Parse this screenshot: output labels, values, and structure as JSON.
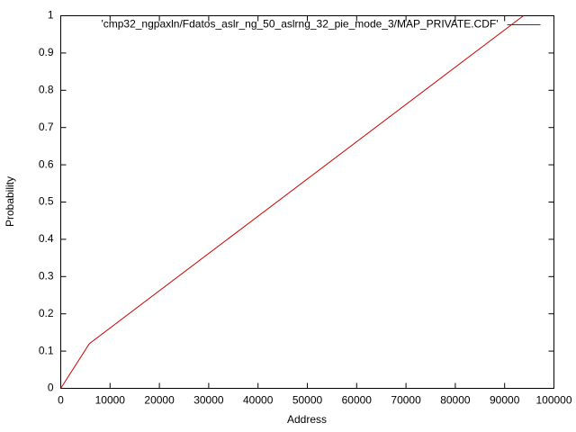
{
  "chart_data": {
    "type": "line",
    "x_label": "Address",
    "y_label": "Probability",
    "x": [
      0,
      5800,
      93800
    ],
    "series": [
      {
        "name": "'cmp32_ngpaxln/Fdatos_aslr_ng_50_aslrng_32_pie_mode_3/MAP_PRIVATE.CDF'",
        "color": "#cc0000",
        "values": [
          0,
          0.12,
          1
        ]
      }
    ],
    "xlim": [
      0,
      100000
    ],
    "xticks": [
      0,
      10000,
      20000,
      30000,
      40000,
      50000,
      60000,
      70000,
      80000,
      90000,
      100000
    ],
    "ylim": [
      0,
      1
    ],
    "yticks": [
      0,
      0.1,
      0.2,
      0.3,
      0.4,
      0.5,
      0.6,
      0.7,
      0.8,
      0.9,
      1
    ],
    "legend": "top-right",
    "grid": false
  }
}
